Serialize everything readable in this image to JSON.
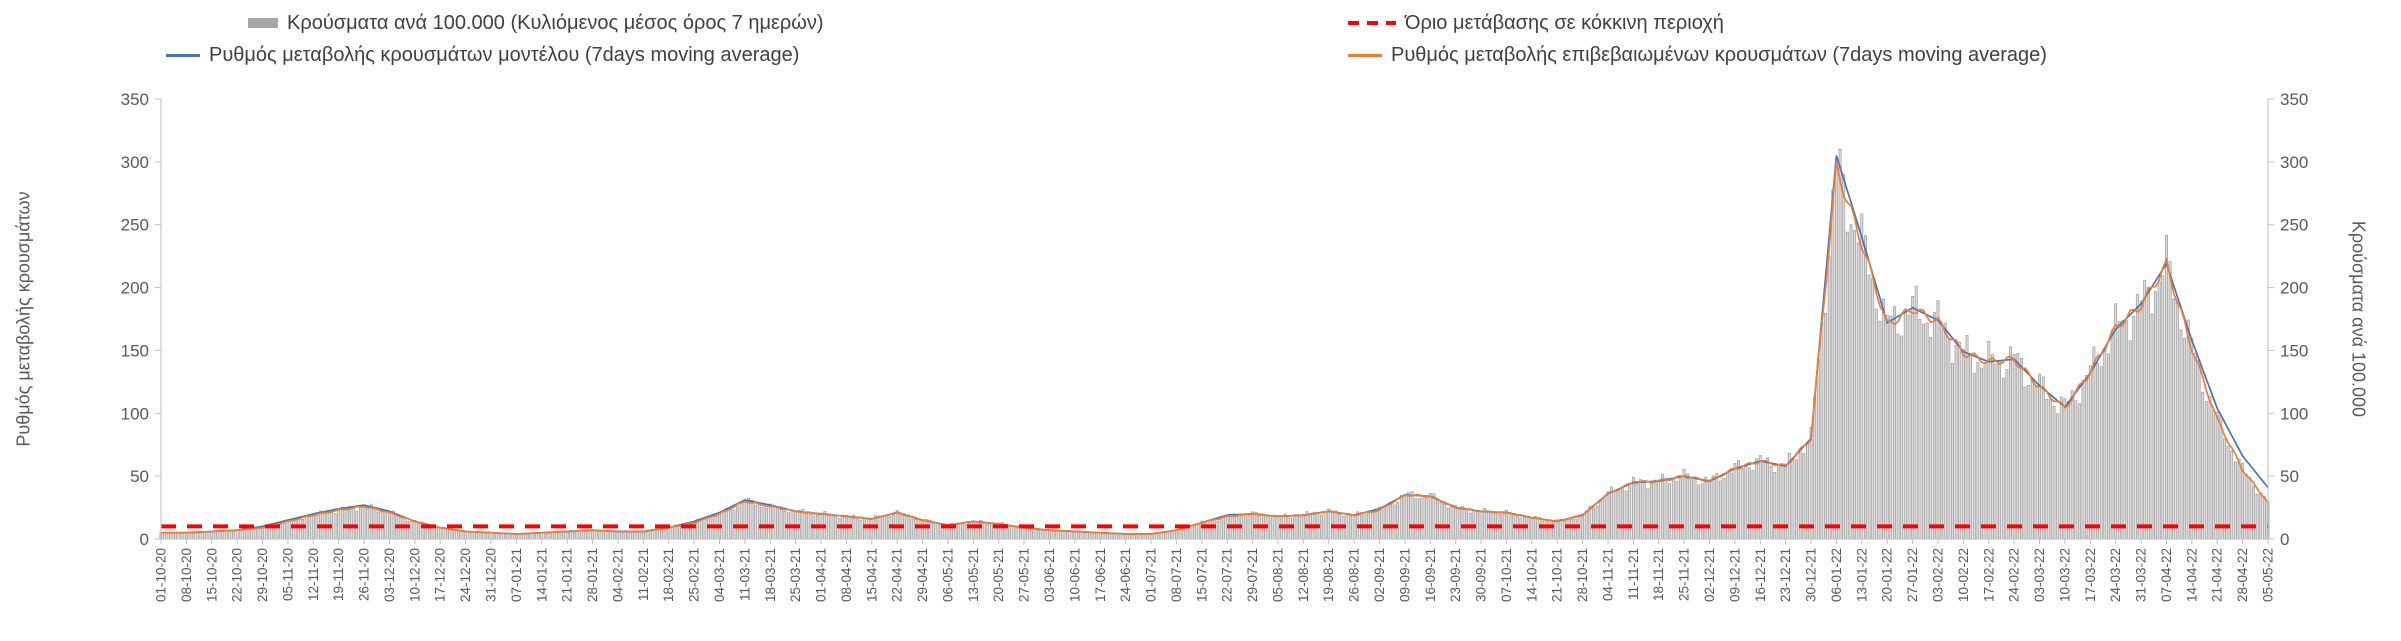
{
  "chart_data": {
    "type": "bar",
    "title": "",
    "ylabel_left": "Ρυθμός μεταβολής κρουσμάτων",
    "ylabel_right": "Κρούσματα ανά 100.000",
    "ylim": [
      0,
      350
    ],
    "yticks": [
      0,
      50,
      100,
      150,
      200,
      250,
      300,
      350
    ],
    "grid": "off",
    "legend_position": "top",
    "threshold": {
      "name": "Όριο μετάβασης σε κόκκινη περιοχή",
      "value": 10,
      "color": "#ff0000"
    },
    "categories": [
      "01-10-20",
      "08-10-20",
      "15-10-20",
      "22-10-20",
      "29-10-20",
      "05-11-20",
      "12-11-20",
      "19-11-20",
      "26-11-20",
      "03-12-20",
      "10-12-20",
      "17-12-20",
      "24-12-20",
      "31-12-20",
      "07-01-21",
      "14-01-21",
      "21-01-21",
      "28-01-21",
      "04-02-21",
      "11-02-21",
      "18-02-21",
      "25-02-21",
      "04-03-21",
      "11-03-21",
      "18-03-21",
      "25-03-21",
      "01-04-21",
      "08-04-21",
      "15-04-21",
      "22-04-21",
      "29-04-21",
      "06-05-21",
      "13-05-21",
      "20-05-21",
      "27-05-21",
      "03-06-21",
      "10-06-21",
      "17-06-21",
      "24-06-21",
      "01-07-21",
      "08-07-21",
      "15-07-21",
      "22-07-21",
      "29-07-21",
      "05-08-21",
      "12-08-21",
      "19-08-21",
      "26-08-21",
      "02-09-21",
      "09-09-21",
      "16-09-21",
      "23-09-21",
      "30-09-21",
      "07-10-21",
      "14-10-21",
      "21-10-21",
      "28-10-21",
      "04-11-21",
      "11-11-21",
      "18-11-21",
      "25-11-21",
      "02-12-21",
      "09-12-21",
      "16-12-21",
      "23-12-21",
      "30-12-21",
      "06-01-22",
      "13-01-22",
      "20-01-22",
      "27-01-22",
      "03-02-22",
      "10-02-22",
      "17-02-22",
      "24-02-22",
      "03-03-22",
      "10-03-22",
      "17-03-22",
      "24-03-22",
      "31-03-22",
      "07-04-22",
      "14-04-22",
      "21-04-22",
      "28-04-22",
      "05-05-22"
    ],
    "series": [
      {
        "name": "Κρούσματα ανά 100.000 (Κυλιόμενος μέσος όρος 7 ημερών)",
        "type": "bar",
        "color": "#a6a6a6",
        "values": [
          5,
          5,
          6,
          7,
          9,
          14,
          19,
          23,
          26,
          21,
          14,
          9,
          6,
          5,
          4,
          5,
          6,
          7,
          6,
          6,
          9,
          13,
          20,
          30,
          26,
          22,
          20,
          18,
          16,
          21,
          15,
          11,
          14,
          12,
          9,
          7,
          6,
          5,
          4,
          4,
          7,
          13,
          18,
          20,
          18,
          19,
          22,
          19,
          23,
          35,
          34,
          25,
          22,
          21,
          17,
          14,
          19,
          36,
          45,
          46,
          50,
          46,
          56,
          62,
          58,
          80,
          295,
          235,
          170,
          183,
          173,
          148,
          141,
          143,
          121,
          104,
          133,
          168,
          186,
          218,
          152,
          95,
          55,
          29
        ]
      },
      {
        "name": "Ρυθμός μεταβολής κρουσμάτων μοντέλου (7days moving average)",
        "type": "line",
        "color": "#4472c4",
        "values": [
          5,
          5,
          6,
          7,
          10,
          15,
          20,
          24,
          27,
          22,
          14,
          9,
          6,
          5,
          4,
          5,
          6,
          7,
          6,
          6,
          9,
          14,
          21,
          31,
          27,
          22,
          20,
          18,
          16,
          21,
          15,
          11,
          14,
          12,
          9,
          7,
          6,
          5,
          4,
          4,
          7,
          13,
          19,
          20,
          18,
          19,
          22,
          19,
          24,
          35,
          34,
          25,
          22,
          21,
          17,
          14,
          19,
          36,
          45,
          46,
          50,
          46,
          56,
          62,
          58,
          80,
          305,
          240,
          172,
          184,
          174,
          149,
          141,
          143,
          122,
          105,
          132,
          167,
          187,
          219,
          158,
          104,
          66,
          41
        ]
      },
      {
        "name": "Ρυθμός μεταβολής επιβεβαιωμένων κρουσμάτων (7days moving average)",
        "type": "line",
        "color": "#ed7d31",
        "values": [
          5,
          5,
          6,
          7,
          9,
          14,
          19,
          23,
          26,
          21,
          14,
          9,
          6,
          5,
          4,
          5,
          6,
          7,
          6,
          6,
          9,
          13,
          20,
          30,
          26,
          22,
          20,
          18,
          16,
          21,
          15,
          11,
          14,
          12,
          9,
          7,
          6,
          5,
          4,
          4,
          7,
          13,
          18,
          20,
          18,
          19,
          22,
          19,
          23,
          35,
          34,
          25,
          22,
          21,
          17,
          14,
          19,
          36,
          45,
          46,
          50,
          46,
          56,
          62,
          58,
          80,
          295,
          235,
          170,
          183,
          173,
          148,
          141,
          143,
          121,
          104,
          133,
          168,
          186,
          218,
          152,
          95,
          55,
          29
        ]
      }
    ]
  }
}
